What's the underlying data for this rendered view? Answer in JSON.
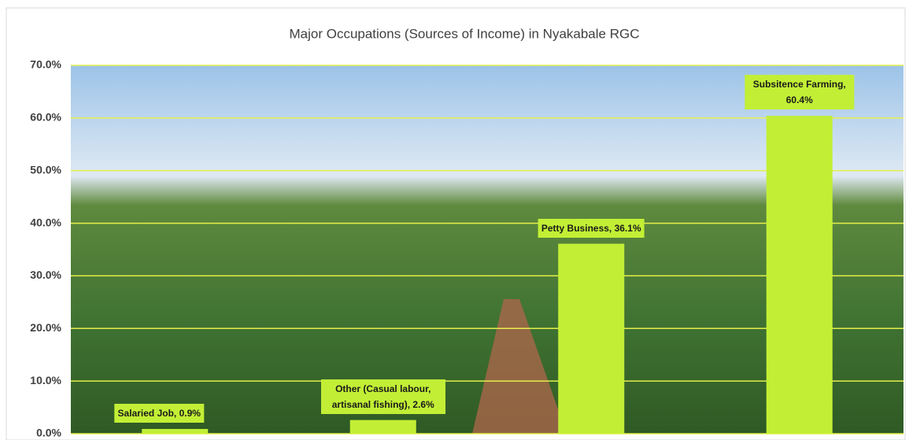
{
  "chart_data": {
    "type": "bar",
    "title": "Major Occupations (Sources of Income) in Nyakabale RGC",
    "categories": [
      "Salaried Job",
      "Other (Casual labour, artisanal fishing)",
      "Petty Business",
      "Subsitence Farming"
    ],
    "values": [
      0.9,
      2.6,
      36.1,
      60.4
    ],
    "value_labels": [
      "Salaried Job, 0.9%",
      "Other (Casual labour, artisanal fishing), 2.6%",
      "Petty Business, 36.1%",
      "Subsitence Farming, 60.4%"
    ],
    "color": "#c2ef35",
    "ylim": [
      0,
      70
    ],
    "yticks": [
      {
        "value": 0,
        "label": "0.0%"
      },
      {
        "value": 10,
        "label": "10.0%"
      },
      {
        "value": 20,
        "label": "20.0%"
      },
      {
        "value": 30,
        "label": "30.0%"
      },
      {
        "value": 40,
        "label": "40.0%"
      },
      {
        "value": 50,
        "label": "50.0%"
      },
      {
        "value": 60,
        "label": "60.0%"
      },
      {
        "value": 70,
        "label": "70.0%"
      }
    ],
    "grid": true
  }
}
